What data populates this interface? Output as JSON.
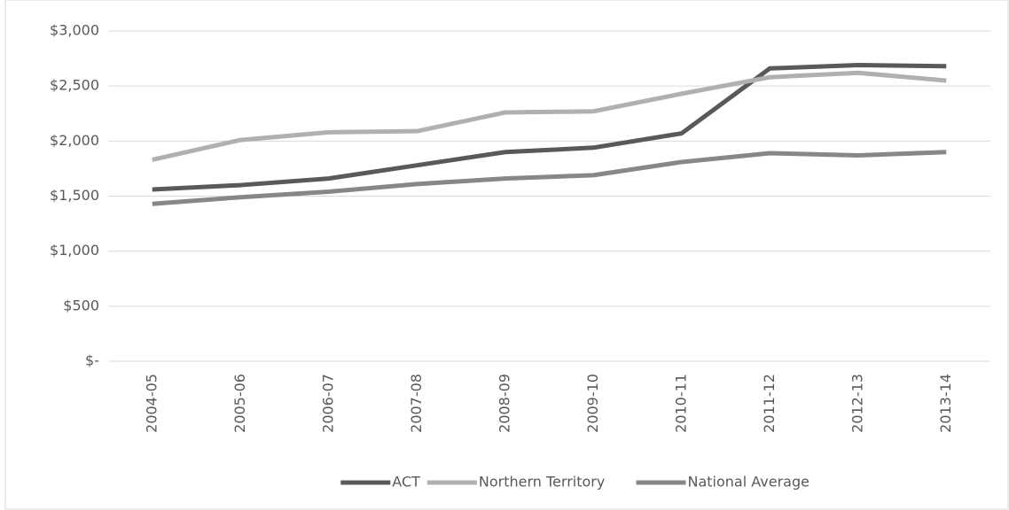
{
  "chart_data": {
    "type": "line",
    "categories": [
      "2004-05",
      "2005-06",
      "2006-07",
      "2007-08",
      "2008-09",
      "2009-10",
      "2010-11",
      "2011-12",
      "2012-13",
      "2013-14"
    ],
    "series": [
      {
        "name": "ACT",
        "color": "#595959",
        "values": [
          1560,
          1600,
          1660,
          1780,
          1900,
          1940,
          2070,
          2660,
          2690,
          2680
        ]
      },
      {
        "name": "Northern Territory",
        "color": "#b0b0b0",
        "values": [
          1830,
          2010,
          2080,
          2090,
          2260,
          2270,
          2430,
          2580,
          2620,
          2550
        ]
      },
      {
        "name": "National Average",
        "color": "#878787",
        "values": [
          1430,
          1490,
          1540,
          1610,
          1660,
          1690,
          1810,
          1890,
          1870,
          1900
        ]
      }
    ],
    "ylim": [
      0,
      3000
    ],
    "yticks": [
      {
        "value": 0,
        "label": "$-"
      },
      {
        "value": 500,
        "label": "$500"
      },
      {
        "value": 1000,
        "label": "$1,000"
      },
      {
        "value": 1500,
        "label": "$1,500"
      },
      {
        "value": 2000,
        "label": "$2,000"
      },
      {
        "value": 2500,
        "label": "$2,500"
      },
      {
        "value": 3000,
        "label": "$3,000"
      }
    ],
    "grid": true,
    "legend": "bottom"
  }
}
